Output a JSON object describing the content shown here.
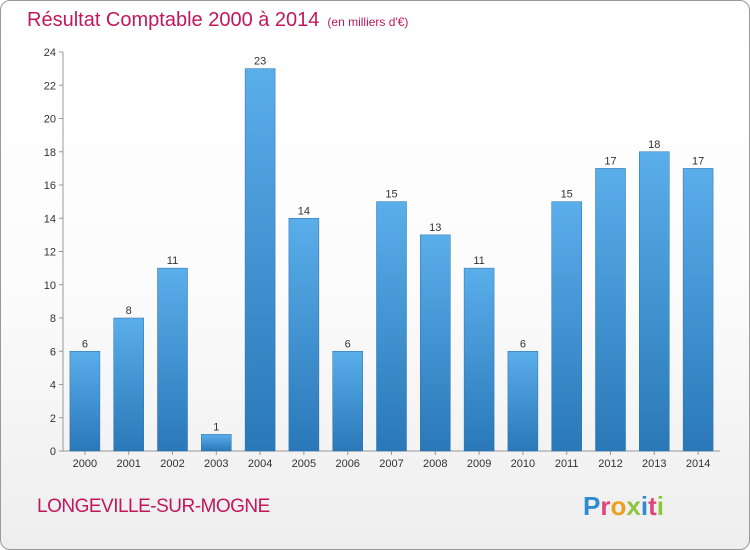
{
  "header": {
    "title": "Résultat Comptable 2000 à 2014",
    "unit": "(en milliers d'€)"
  },
  "footer": {
    "commune": "LONGEVILLE-SUR-MOGNE",
    "logo_letters": [
      "P",
      "r",
      "o",
      "x",
      "i",
      "t",
      "i"
    ],
    "logo_colors": [
      "#2e8bd0",
      "#e0457b",
      "#f0a020",
      "#8cc63f",
      "#2e8bd0",
      "#e0457b",
      "#8cc63f"
    ]
  },
  "colors": {
    "bar_light": "#5aaeea",
    "bar_dark": "#2a78b8",
    "accent": "#c2185b"
  },
  "chart_data": {
    "type": "bar",
    "categories": [
      "2000",
      "2001",
      "2002",
      "2003",
      "2004",
      "2005",
      "2006",
      "2007",
      "2008",
      "2009",
      "2010",
      "2011",
      "2012",
      "2013",
      "2014"
    ],
    "values": [
      6,
      8,
      11,
      1,
      23,
      14,
      6,
      15,
      13,
      11,
      6,
      15,
      17,
      18,
      17
    ],
    "ylim": [
      0,
      24
    ],
    "yticks": [
      0,
      2,
      4,
      6,
      8,
      10,
      12,
      14,
      16,
      18,
      20,
      22,
      24
    ],
    "grid": false,
    "data_labels": true
  }
}
